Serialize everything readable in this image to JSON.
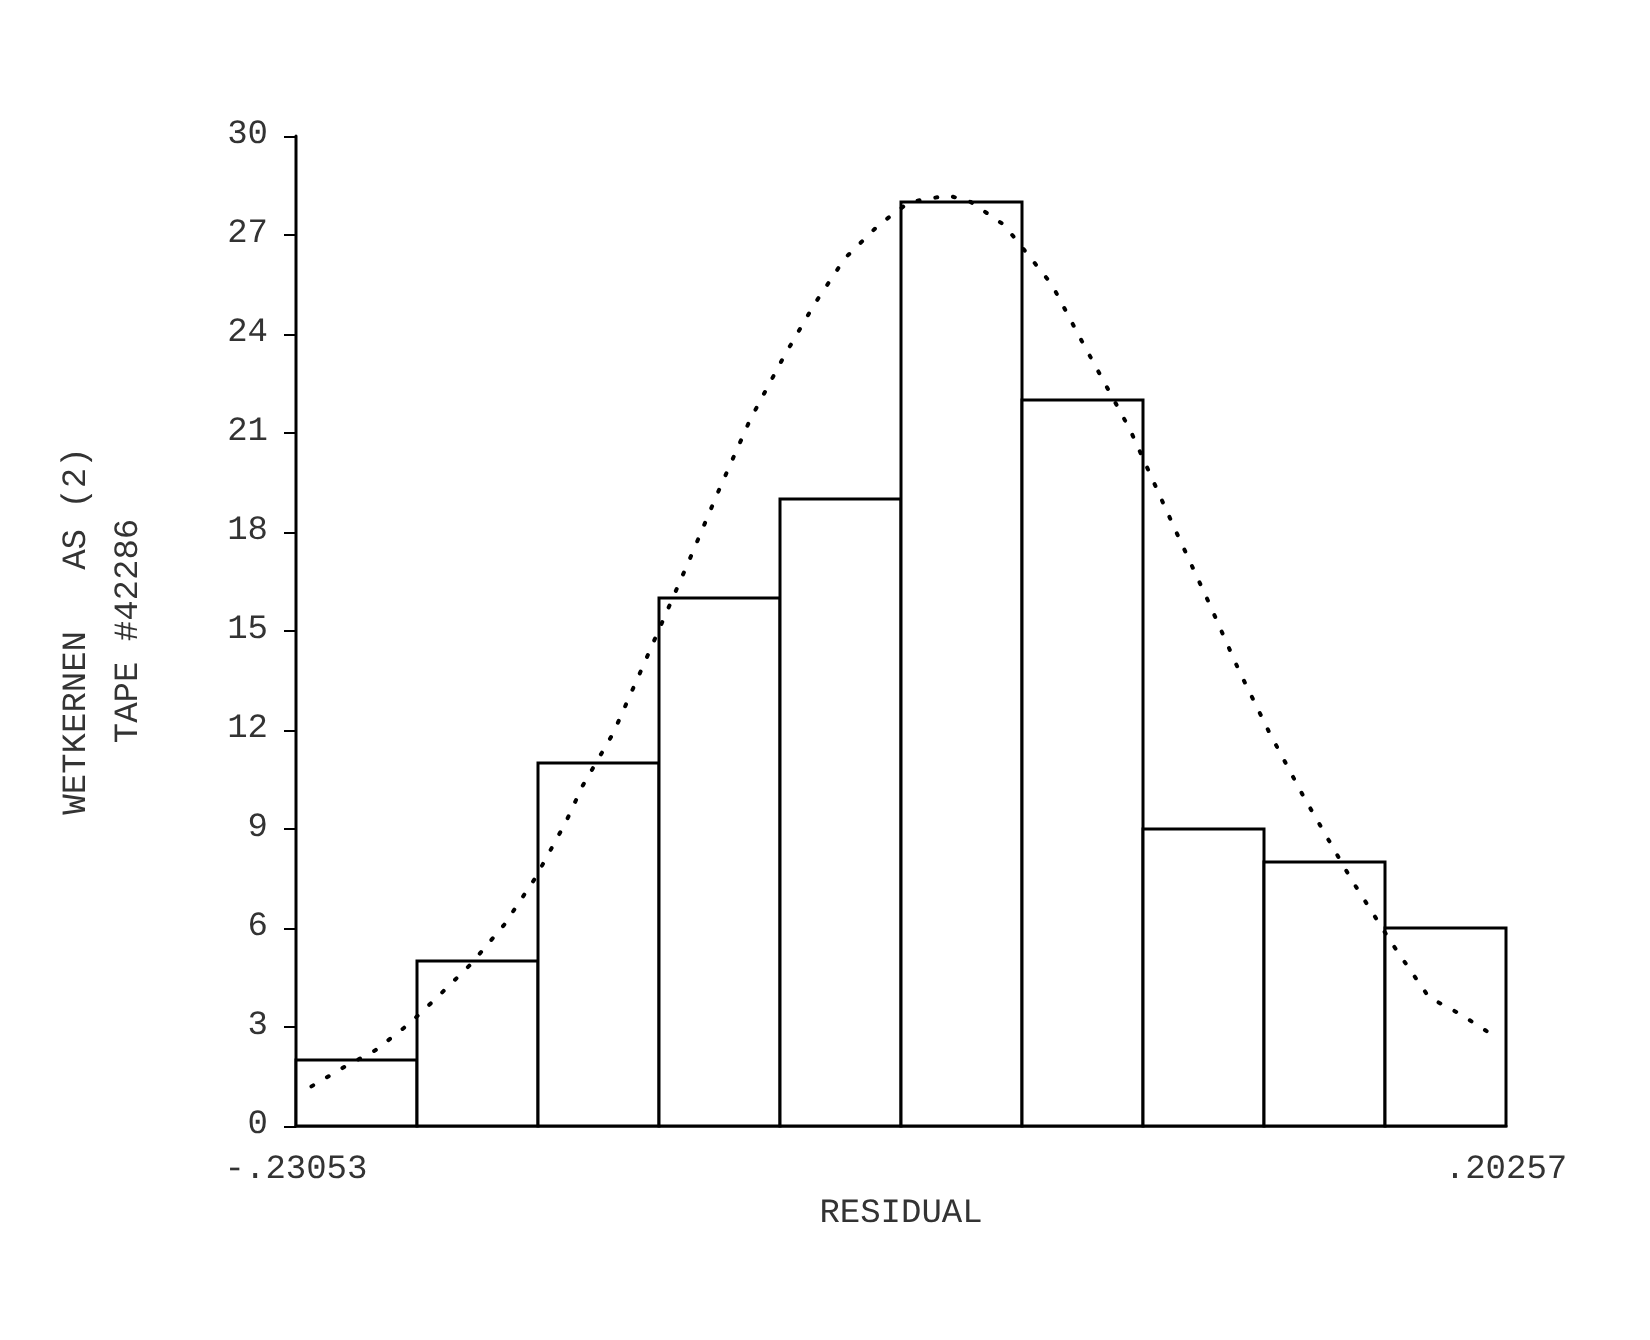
{
  "chart_data": {
    "type": "histogram",
    "ylabel": "WETKERNEN   AS (2)\nTAPE #42286",
    "xlabel": "RESIDUAL",
    "bins": [
      -0.23053,
      -0.18722,
      -0.14391,
      -0.1006,
      -0.05729,
      -0.01398,
      0.02933,
      0.07264,
      0.11595,
      0.15926,
      0.20257
    ],
    "values": [
      2,
      5,
      11,
      16,
      19,
      28,
      22,
      9,
      8,
      6
    ],
    "color": "#ffffff",
    "series": [
      {
        "type": "line",
        "color": "#000000",
        "line_style": "dotted",
        "marker": "none",
        "x": [
          -0.225,
          -0.213,
          -0.202,
          -0.19,
          -0.18,
          -0.168,
          -0.156,
          -0.145,
          -0.134,
          -0.128,
          -0.117,
          -0.106,
          -0.09,
          -0.079,
          -0.068,
          -0.056,
          -0.045,
          -0.034,
          -0.022,
          -0.011,
          0.003,
          0.011,
          0.023,
          0.04,
          0.05,
          0.068,
          0.084,
          0.096,
          0.107,
          0.118,
          0.13,
          0.147,
          0.162,
          0.175,
          0.186,
          0.197
        ],
        "values": [
          1.2,
          1.8,
          2.3,
          3.1,
          3.9,
          4.9,
          6.1,
          7.5,
          9.2,
          10.3,
          11.9,
          14.0,
          17.1,
          19.3,
          21.4,
          23.3,
          24.9,
          26.3,
          27.3,
          28.0,
          28.2,
          28.0,
          27.3,
          25.5,
          23.9,
          21.1,
          18.1,
          15.9,
          13.8,
          11.9,
          10.0,
          7.5,
          5.5,
          3.9,
          3.4,
          2.8
        ]
      }
    ],
    "xlim": [
      -0.23053,
      0.20257
    ],
    "xticks": [
      {
        "value": -0.23053,
        "label": "-.23053"
      },
      {
        "value": 0.20257,
        "label": ".20257"
      }
    ],
    "ylim": [
      0,
      30
    ],
    "yticks": [
      0,
      3,
      6,
      9,
      12,
      15,
      18,
      21,
      24,
      27,
      30
    ],
    "grid": false
  }
}
